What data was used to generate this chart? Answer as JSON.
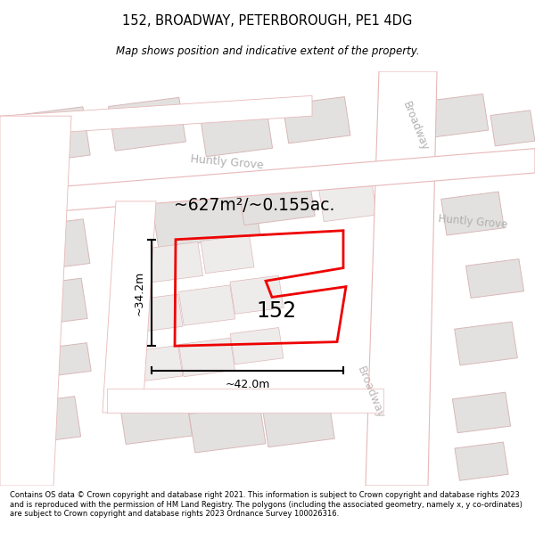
{
  "title_line1": "152, BROADWAY, PETERBOROUGH, PE1 4DG",
  "title_line2": "Map shows position and indicative extent of the property.",
  "footer_text": "Contains OS data © Crown copyright and database right 2021. This information is subject to Crown copyright and database rights 2023 and is reproduced with the permission of HM Land Registry. The polygons (including the associated geometry, namely x, y co-ordinates) are subject to Crown copyright and database rights 2023 Ordnance Survey 100026316.",
  "area_label": "~627m²/~0.155ac.",
  "number_label": "152",
  "dim_h": "~42.0m",
  "dim_v": "~34.2m",
  "map_bg": "#f2f0ee",
  "road_fill": "#ffffff",
  "road_edge": "#e8b8b8",
  "block_fill": "#e3e1df",
  "block_edge": "#d8b8b8",
  "plot_color": "#ee0000",
  "street_label_color": "#b0b0b0",
  "street_label_color2": "#c0b8b8",
  "dim_color": "#111111"
}
